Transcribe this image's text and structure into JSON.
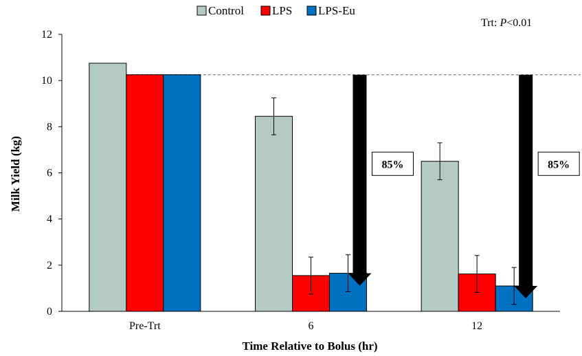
{
  "chart_data": {
    "type": "bar",
    "title": "",
    "xlabel": "Time Relative to Bolus (hr)",
    "ylabel": "Milk Yield (kg)",
    "ylim": [
      0,
      12
    ],
    "yticks": [
      0,
      2,
      4,
      6,
      8,
      10,
      12
    ],
    "categories": [
      "Pre-Trt",
      "6",
      "12"
    ],
    "series": [
      {
        "name": "Control",
        "color": "#b3cbc3",
        "values": [
          10.75,
          8.45,
          6.5
        ],
        "errors": [
          null,
          0.8,
          0.8
        ]
      },
      {
        "name": "LPS",
        "color": "#ff0000",
        "values": [
          10.25,
          1.55,
          1.62
        ],
        "errors": [
          null,
          0.8,
          0.8
        ]
      },
      {
        "name": "LPS-Eu",
        "color": "#0070c0",
        "values": [
          10.25,
          1.65,
          1.1
        ],
        "errors": [
          null,
          0.8,
          0.8
        ]
      }
    ],
    "legend_position": "top",
    "grid": false,
    "reference_line": {
      "y": 10.25,
      "style": "dashed"
    },
    "annotations": {
      "significance_prefix": "Trt: ",
      "significance_italic": "P",
      "significance_suffix": "<0.01",
      "arrows": [
        {
          "category": "6",
          "label": "85%",
          "from": 10.25,
          "to": 1.65
        },
        {
          "category": "12",
          "label": "85%",
          "from": 10.25,
          "to": 1.1
        }
      ]
    }
  }
}
